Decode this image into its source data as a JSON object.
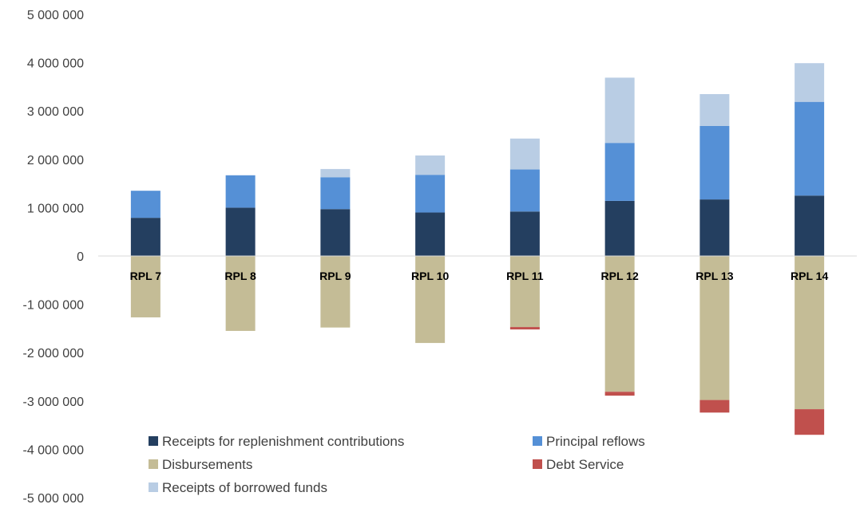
{
  "chart_data": {
    "type": "bar",
    "stacked": true,
    "categories": [
      "RPL 7",
      "RPL 8",
      "RPL 9",
      "RPL 10",
      "RPL 11",
      "RPL 12",
      "RPL 13",
      "RPL 14"
    ],
    "series": [
      {
        "name": "Receipts for replenishment contributions",
        "color": "#243f60",
        "values": [
          790000,
          1000000,
          970000,
          900000,
          920000,
          1140000,
          1170000,
          1250000
        ]
      },
      {
        "name": "Principal reflows",
        "color": "#5590d6",
        "values": [
          560000,
          670000,
          660000,
          780000,
          870000,
          1200000,
          1520000,
          1940000
        ]
      },
      {
        "name": "Receipts of borrowed funds",
        "color": "#b9cde4",
        "values": [
          0,
          0,
          170000,
          400000,
          640000,
          1350000,
          660000,
          800000
        ]
      },
      {
        "name": "Disbursements",
        "color": "#c4bc96",
        "values": [
          -1270000,
          -1550000,
          -1480000,
          -1800000,
          -1470000,
          -2810000,
          -2980000,
          -3170000
        ]
      },
      {
        "name": "Debt Service",
        "color": "#c0504d",
        "values": [
          0,
          0,
          0,
          0,
          -50000,
          -80000,
          -260000,
          -530000
        ]
      }
    ],
    "ylim": [
      -5000000,
      5000000
    ],
    "ytick_step": 1000000,
    "yticks": [
      "5 000 000",
      "4 000 000",
      "3 000 000",
      "2 000 000",
      "1 000 000",
      "0",
      "-1 000 000",
      "-2 000 000",
      "-3 000 000",
      "-4 000 000",
      "-5 000 000"
    ],
    "grid": false,
    "legend_placement": "bottom",
    "legend": [
      {
        "name": "Receipts for replenishment contributions",
        "color": "#243f60"
      },
      {
        "name": "Principal reflows",
        "color": "#5590d6"
      },
      {
        "name": "Disbursements",
        "color": "#c4bc96"
      },
      {
        "name": "Debt Service",
        "color": "#c0504d"
      },
      {
        "name": "Receipts of borrowed funds",
        "color": "#b9cde4"
      }
    ],
    "axis_color": "#d9d9d9"
  }
}
